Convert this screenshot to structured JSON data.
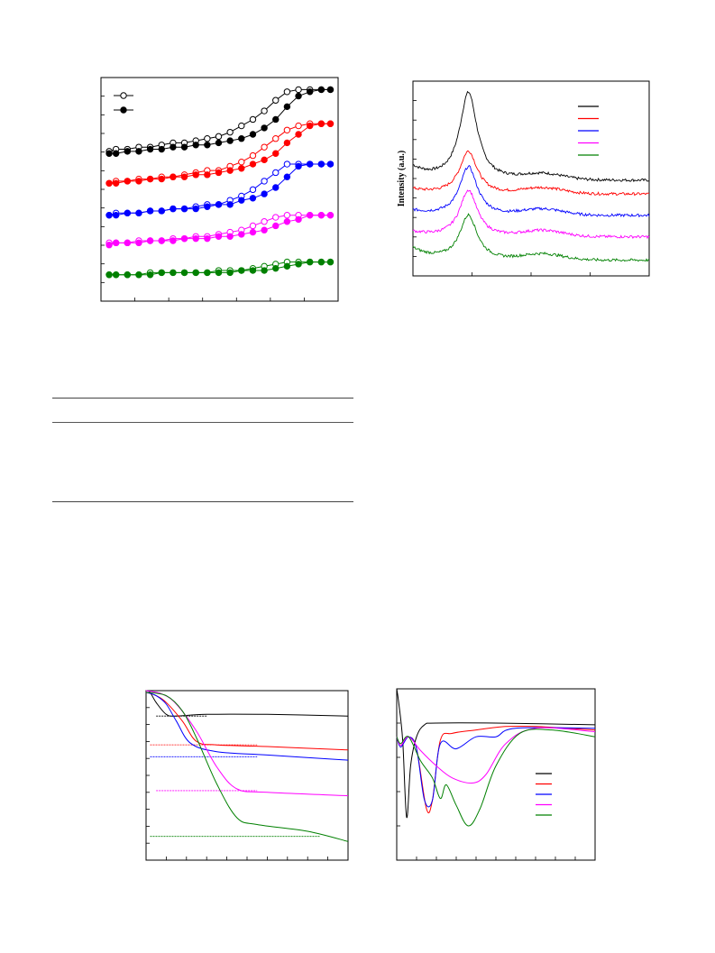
{
  "colors": {
    "black": "#000000",
    "red": "#ff0000",
    "blue": "#0000ff",
    "magenta": "#ff00ff",
    "green": "#008000"
  },
  "figure_a": {
    "ylabel": "",
    "legend": [
      "",
      ""
    ],
    "chart_data": {
      "type": "scatter",
      "title": "",
      "xlabel": "",
      "ylabel": "",
      "grid": false,
      "x": [
        0.02,
        0.05,
        0.1,
        0.15,
        0.2,
        0.25,
        0.3,
        0.35,
        0.4,
        0.45,
        0.5,
        0.55,
        0.6,
        0.65,
        0.7,
        0.75,
        0.8,
        0.85,
        0.9,
        0.95,
        0.99
      ],
      "xlim": [
        0,
        1
      ],
      "ylim": [
        0,
        1
      ],
      "series": [
        {
          "color": "black",
          "adsorption": [
            0.66,
            0.66,
            0.67,
            0.67,
            0.68,
            0.68,
            0.69,
            0.69,
            0.7,
            0.7,
            0.71,
            0.72,
            0.73,
            0.75,
            0.78,
            0.82,
            0.88,
            0.93,
            0.95,
            0.96,
            0.96
          ],
          "desorption": [
            0.67,
            0.68,
            0.68,
            0.69,
            0.69,
            0.7,
            0.71,
            0.71,
            0.72,
            0.73,
            0.74,
            0.76,
            0.79,
            0.82,
            0.86,
            0.91,
            0.95,
            0.96,
            0.96,
            0.96,
            0.96
          ]
        },
        {
          "color": "red",
          "adsorption": [
            0.52,
            0.52,
            0.53,
            0.53,
            0.54,
            0.54,
            0.55,
            0.55,
            0.56,
            0.56,
            0.57,
            0.58,
            0.59,
            0.61,
            0.63,
            0.66,
            0.71,
            0.75,
            0.79,
            0.8,
            0.8
          ],
          "desorption": [
            0.52,
            0.53,
            0.53,
            0.54,
            0.54,
            0.55,
            0.55,
            0.56,
            0.57,
            0.58,
            0.58,
            0.6,
            0.62,
            0.65,
            0.69,
            0.73,
            0.77,
            0.79,
            0.8,
            0.8,
            0.8
          ]
        },
        {
          "color": "blue",
          "adsorption": [
            0.37,
            0.37,
            0.38,
            0.38,
            0.39,
            0.39,
            0.4,
            0.4,
            0.4,
            0.41,
            0.42,
            0.42,
            0.44,
            0.45,
            0.47,
            0.5,
            0.55,
            0.6,
            0.61,
            0.61,
            0.61
          ],
          "desorption": [
            0.37,
            0.38,
            0.38,
            0.38,
            0.39,
            0.39,
            0.4,
            0.4,
            0.41,
            0.42,
            0.42,
            0.44,
            0.46,
            0.49,
            0.53,
            0.57,
            0.61,
            0.61,
            0.61,
            0.61,
            0.61
          ]
        },
        {
          "color": "magenta",
          "adsorption": [
            0.23,
            0.24,
            0.24,
            0.24,
            0.25,
            0.25,
            0.25,
            0.26,
            0.26,
            0.26,
            0.27,
            0.27,
            0.28,
            0.29,
            0.3,
            0.32,
            0.34,
            0.35,
            0.37,
            0.37,
            0.37
          ],
          "desorption": [
            0.24,
            0.24,
            0.24,
            0.25,
            0.25,
            0.25,
            0.26,
            0.26,
            0.27,
            0.27,
            0.28,
            0.29,
            0.3,
            0.32,
            0.34,
            0.36,
            0.37,
            0.37,
            0.37,
            0.37,
            0.37
          ]
        },
        {
          "color": "green",
          "adsorption": [
            0.09,
            0.09,
            0.09,
            0.09,
            0.09,
            0.1,
            0.1,
            0.1,
            0.1,
            0.1,
            0.1,
            0.1,
            0.11,
            0.11,
            0.11,
            0.12,
            0.13,
            0.14,
            0.15,
            0.15,
            0.15
          ],
          "desorption": [
            0.09,
            0.09,
            0.09,
            0.09,
            0.1,
            0.1,
            0.1,
            0.1,
            0.1,
            0.1,
            0.11,
            0.11,
            0.11,
            0.12,
            0.13,
            0.14,
            0.15,
            0.15,
            0.15,
            0.15,
            0.15
          ]
        }
      ]
    }
  },
  "figure_b": {
    "ylabel": "Intensity (a.u.)",
    "legend": [
      "",
      "",
      "",
      "",
      ""
    ],
    "chart_data": {
      "type": "line",
      "title": "",
      "xlabel": "",
      "ylabel": "Intensity (a.u.)",
      "grid": false,
      "legend_position": "top-right",
      "xlim": [
        0,
        1
      ],
      "ylim": [
        0,
        1
      ],
      "peak_x": 0.235,
      "series": [
        {
          "color": "black",
          "baseline": 0.49,
          "peak": 0.94,
          "start": 0.6
        },
        {
          "color": "red",
          "baseline": 0.42,
          "peak": 0.64,
          "start": 0.46
        },
        {
          "color": "blue",
          "baseline": 0.31,
          "peak": 0.56,
          "start": 0.35
        },
        {
          "color": "magenta",
          "baseline": 0.2,
          "peak": 0.44,
          "start": 0.24
        },
        {
          "color": "green",
          "baseline": 0.08,
          "peak": 0.31,
          "start": 0.18
        }
      ]
    }
  },
  "table": {
    "rows": 3
  },
  "figure_c": {
    "chart_data": {
      "type": "line",
      "title": "",
      "xlabel": "",
      "ylabel": "",
      "grid": false,
      "xlim": [
        0,
        1
      ],
      "ylim": [
        0,
        1
      ],
      "series": [
        {
          "color": "black",
          "points": [
            [
              0,
              1.0
            ],
            [
              0.02,
              0.99
            ],
            [
              0.05,
              0.93
            ],
            [
              0.1,
              0.86
            ],
            [
              0.15,
              0.85
            ],
            [
              0.3,
              0.86
            ],
            [
              0.6,
              0.86
            ],
            [
              1,
              0.85
            ]
          ],
          "ref": 0.85
        },
        {
          "color": "red",
          "points": [
            [
              0,
              0.99
            ],
            [
              0.05,
              0.97
            ],
            [
              0.1,
              0.93
            ],
            [
              0.18,
              0.82
            ],
            [
              0.25,
              0.7
            ],
            [
              0.35,
              0.68
            ],
            [
              0.6,
              0.67
            ],
            [
              1,
              0.65
            ]
          ],
          "ref": 0.68
        },
        {
          "color": "blue",
          "points": [
            [
              0,
              0.99
            ],
            [
              0.05,
              0.97
            ],
            [
              0.1,
              0.92
            ],
            [
              0.15,
              0.82
            ],
            [
              0.22,
              0.69
            ],
            [
              0.35,
              0.64
            ],
            [
              0.6,
              0.62
            ],
            [
              1,
              0.59
            ]
          ],
          "ref": 0.61
        },
        {
          "color": "magenta",
          "points": [
            [
              0,
              1.0
            ],
            [
              0.08,
              0.98
            ],
            [
              0.15,
              0.92
            ],
            [
              0.25,
              0.76
            ],
            [
              0.35,
              0.55
            ],
            [
              0.45,
              0.42
            ],
            [
              0.6,
              0.4
            ],
            [
              1,
              0.38
            ]
          ],
          "ref": 0.41
        },
        {
          "color": "green",
          "points": [
            [
              0,
              0.99
            ],
            [
              0.1,
              0.97
            ],
            [
              0.18,
              0.88
            ],
            [
              0.25,
              0.72
            ],
            [
              0.35,
              0.45
            ],
            [
              0.45,
              0.25
            ],
            [
              0.55,
              0.21
            ],
            [
              0.8,
              0.17
            ],
            [
              1,
              0.11
            ]
          ],
          "ref": 0.14
        }
      ]
    }
  },
  "figure_d": {
    "legend": [
      "",
      "",
      "",
      "",
      ""
    ],
    "chart_data": {
      "type": "line",
      "title": "",
      "xlabel": "",
      "ylabel": "",
      "grid": false,
      "legend_position": "center-right",
      "xlim": [
        0,
        1
      ],
      "ylim": [
        0,
        1
      ],
      "series": [
        {
          "color": "black",
          "points": [
            [
              0,
              1.0
            ],
            [
              0.01,
              0.92
            ],
            [
              0.03,
              0.7
            ],
            [
              0.05,
              0.25
            ],
            [
              0.07,
              0.55
            ],
            [
              0.1,
              0.72
            ],
            [
              0.14,
              0.79
            ],
            [
              0.2,
              0.8
            ],
            [
              0.5,
              0.8
            ],
            [
              1,
              0.79
            ]
          ]
        },
        {
          "color": "red",
          "points": [
            [
              0,
              0.72
            ],
            [
              0.02,
              0.67
            ],
            [
              0.06,
              0.72
            ],
            [
              0.1,
              0.65
            ],
            [
              0.15,
              0.3
            ],
            [
              0.18,
              0.35
            ],
            [
              0.22,
              0.7
            ],
            [
              0.28,
              0.74
            ],
            [
              0.4,
              0.76
            ],
            [
              0.55,
              0.78
            ],
            [
              0.7,
              0.78
            ],
            [
              1,
              0.76
            ]
          ]
        },
        {
          "color": "blue",
          "points": [
            [
              0,
              0.72
            ],
            [
              0.02,
              0.66
            ],
            [
              0.06,
              0.72
            ],
            [
              0.1,
              0.65
            ],
            [
              0.14,
              0.35
            ],
            [
              0.18,
              0.35
            ],
            [
              0.22,
              0.68
            ],
            [
              0.3,
              0.65
            ],
            [
              0.4,
              0.72
            ],
            [
              0.5,
              0.72
            ],
            [
              0.6,
              0.77
            ],
            [
              1,
              0.77
            ]
          ]
        },
        {
          "color": "magenta",
          "points": [
            [
              0,
              0.72
            ],
            [
              0.02,
              0.67
            ],
            [
              0.06,
              0.72
            ],
            [
              0.12,
              0.64
            ],
            [
              0.2,
              0.55
            ],
            [
              0.28,
              0.48
            ],
            [
              0.38,
              0.45
            ],
            [
              0.45,
              0.5
            ],
            [
              0.55,
              0.68
            ],
            [
              0.7,
              0.77
            ],
            [
              1,
              0.75
            ]
          ]
        },
        {
          "color": "green",
          "points": [
            [
              0,
              0.72
            ],
            [
              0.02,
              0.68
            ],
            [
              0.06,
              0.72
            ],
            [
              0.12,
              0.58
            ],
            [
              0.18,
              0.48
            ],
            [
              0.22,
              0.36
            ],
            [
              0.25,
              0.44
            ],
            [
              0.3,
              0.32
            ],
            [
              0.36,
              0.2
            ],
            [
              0.42,
              0.3
            ],
            [
              0.5,
              0.55
            ],
            [
              0.62,
              0.74
            ],
            [
              0.78,
              0.76
            ],
            [
              1,
              0.72
            ]
          ]
        }
      ]
    }
  }
}
